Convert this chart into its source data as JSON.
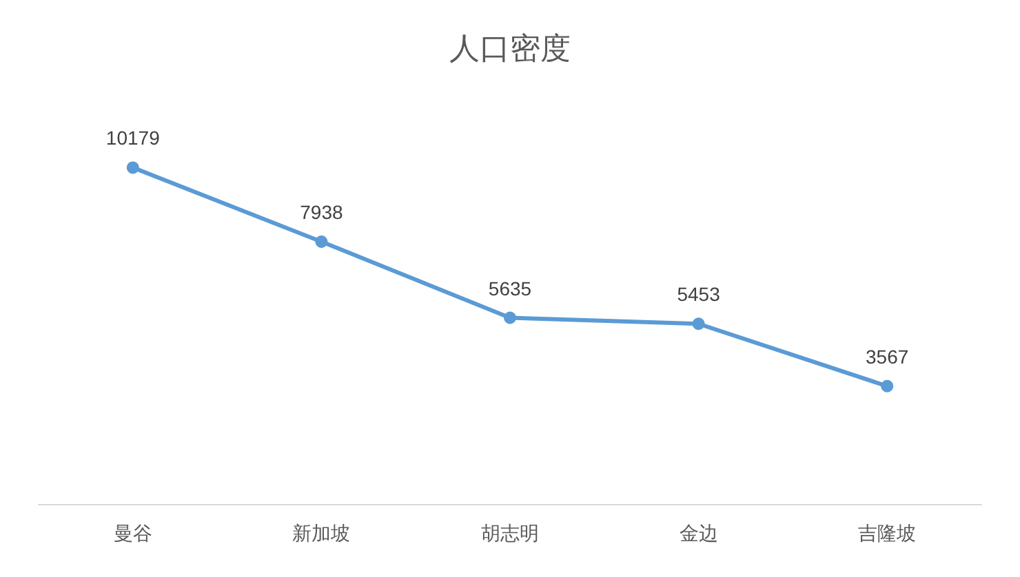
{
  "chart_data": {
    "type": "line",
    "title": "人口密度",
    "categories": [
      "曼谷",
      "新加坡",
      "胡志明",
      "金边",
      "吉隆坡"
    ],
    "series": [
      {
        "color": "#5b9bd5",
        "values": [
          10179,
          7938,
          5635,
          5453,
          3567
        ]
      }
    ],
    "data_labels": true,
    "marker": "circle",
    "line_style": "solid"
  }
}
